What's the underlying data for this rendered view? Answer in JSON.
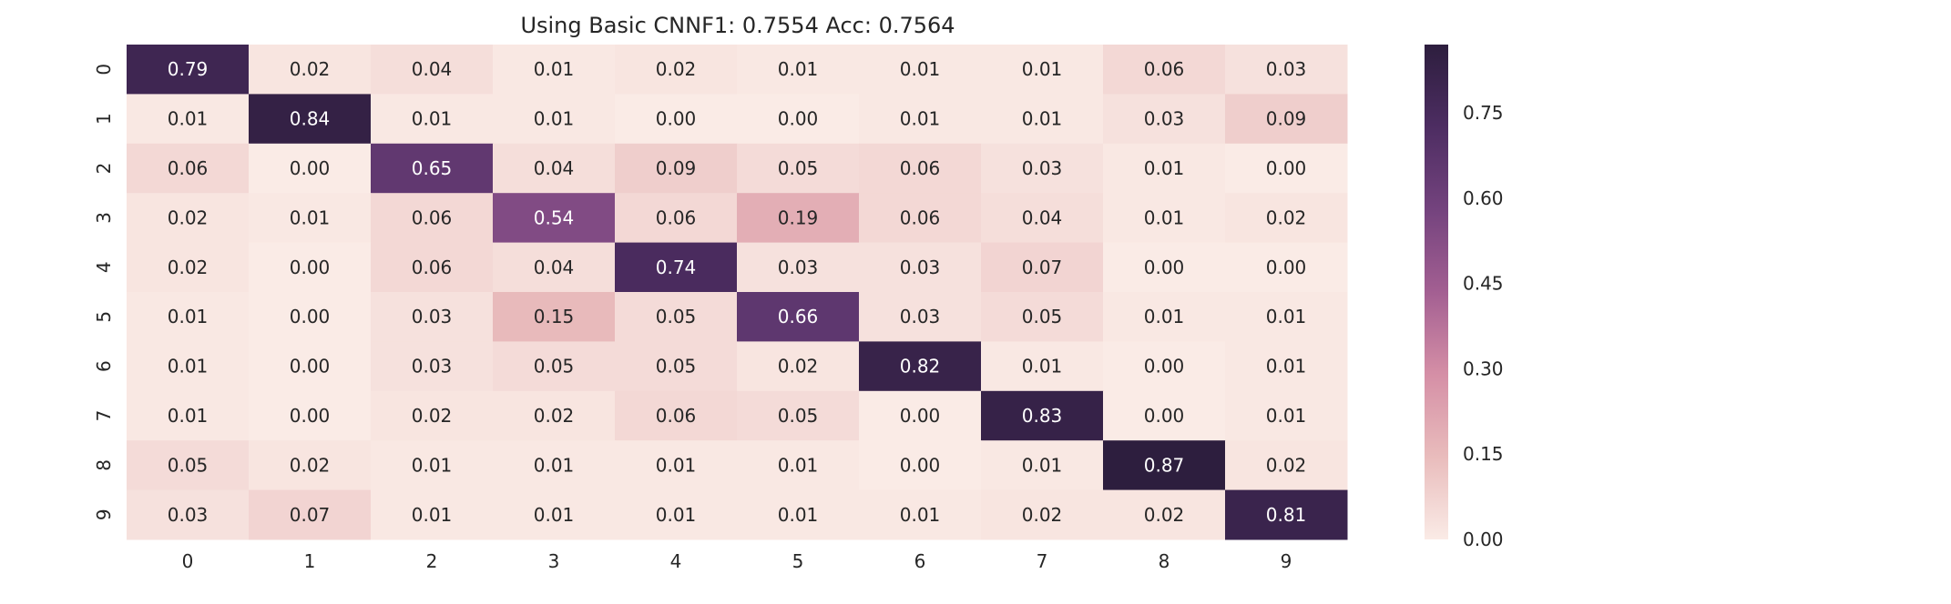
{
  "chart_data": {
    "type": "heatmap",
    "title": "Using Basic CNNF1: 0.7554 Acc: 0.7564",
    "x_labels": [
      "0",
      "1",
      "2",
      "3",
      "4",
      "5",
      "6",
      "7",
      "8",
      "9"
    ],
    "y_labels": [
      "0",
      "1",
      "2",
      "3",
      "4",
      "5",
      "6",
      "7",
      "8",
      "9"
    ],
    "values": [
      [
        0.79,
        0.02,
        0.04,
        0.01,
        0.02,
        0.01,
        0.01,
        0.01,
        0.06,
        0.03
      ],
      [
        0.01,
        0.84,
        0.01,
        0.01,
        0.0,
        0.0,
        0.01,
        0.01,
        0.03,
        0.09
      ],
      [
        0.06,
        0.0,
        0.65,
        0.04,
        0.09,
        0.05,
        0.06,
        0.03,
        0.01,
        0.0
      ],
      [
        0.02,
        0.01,
        0.06,
        0.54,
        0.06,
        0.19,
        0.06,
        0.04,
        0.01,
        0.02
      ],
      [
        0.02,
        0.0,
        0.06,
        0.04,
        0.74,
        0.03,
        0.03,
        0.07,
        0.0,
        0.0
      ],
      [
        0.01,
        0.0,
        0.03,
        0.15,
        0.05,
        0.66,
        0.03,
        0.05,
        0.01,
        0.01
      ],
      [
        0.01,
        0.0,
        0.03,
        0.05,
        0.05,
        0.02,
        0.82,
        0.01,
        0.0,
        0.01
      ],
      [
        0.01,
        0.0,
        0.02,
        0.02,
        0.06,
        0.05,
        0.0,
        0.83,
        0.0,
        0.01
      ],
      [
        0.05,
        0.02,
        0.01,
        0.01,
        0.01,
        0.01,
        0.0,
        0.01,
        0.87,
        0.02
      ],
      [
        0.03,
        0.07,
        0.01,
        0.01,
        0.01,
        0.01,
        0.01,
        0.02,
        0.02,
        0.81
      ]
    ],
    "colorbar": {
      "ticks": [
        "0.00",
        "0.15",
        "0.30",
        "0.45",
        "0.60",
        "0.75"
      ],
      "range": [
        0.0,
        0.87
      ]
    },
    "colormap": [
      "#faebe6",
      "#e9bcbc",
      "#d58fa6",
      "#a35f92",
      "#74437e",
      "#4d2d62",
      "#2d1e3e"
    ],
    "annotation_colors": {
      "light": "#ffffff",
      "dark": "#262626"
    }
  }
}
